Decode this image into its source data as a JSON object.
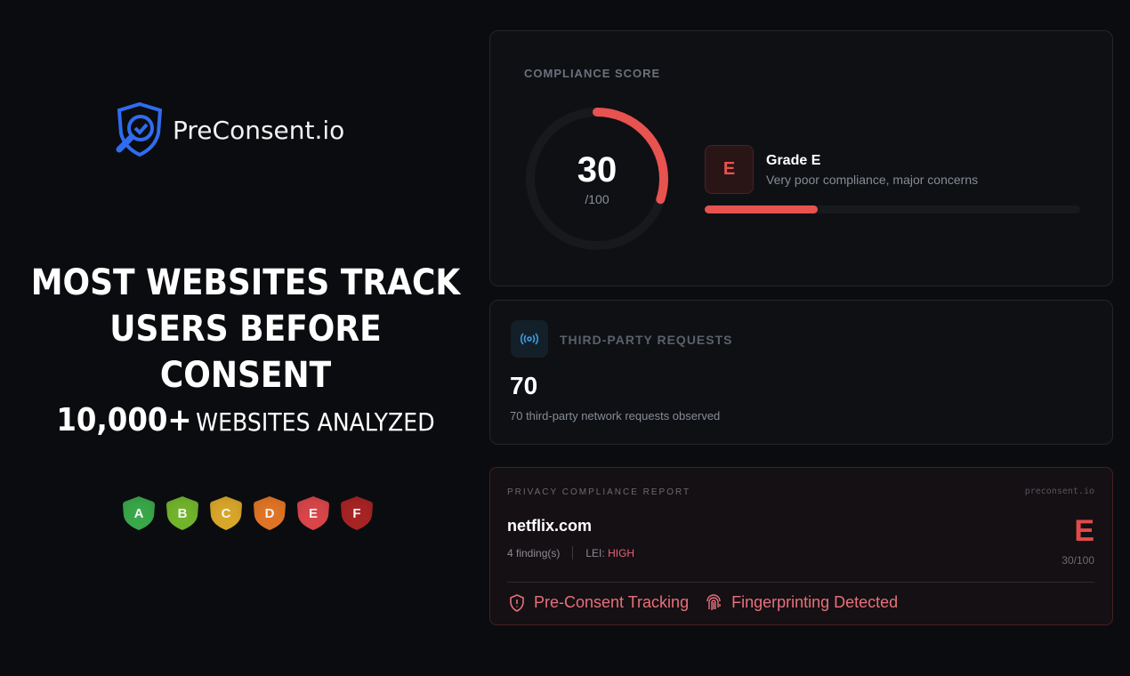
{
  "brand": {
    "name": "PreConsent.io",
    "icon": "shield-magnifier-check-icon",
    "color": "#2f6cf0"
  },
  "hero": {
    "headline_1": "MOST WEBSITES TRACK",
    "headline_2": "USERS BEFORE CONSENT",
    "stat_number": "10,000+",
    "stat_text": "WEBSITES ANALYZED"
  },
  "grades": [
    {
      "letter": "A",
      "color": "#3aa84a"
    },
    {
      "letter": "B",
      "color": "#72b52c"
    },
    {
      "letter": "C",
      "color": "#d9a72a"
    },
    {
      "letter": "D",
      "color": "#e07526"
    },
    {
      "letter": "E",
      "color": "#d9464a"
    },
    {
      "letter": "F",
      "color": "#a82424"
    }
  ],
  "score": {
    "label": "COMPLIANCE SCORE",
    "value": "30",
    "max": "/100",
    "percent": 30,
    "grade": "E",
    "grade_title": "Grade E",
    "grade_desc": "Very poor compliance, major concerns",
    "accent": "#e8524f"
  },
  "requests": {
    "icon": "broadcast-icon",
    "label": "THIRD-PARTY REQUESTS",
    "value": "70",
    "desc": "70 third-party network requests observed"
  },
  "report": {
    "label": "PRIVACY COMPLIANCE REPORT",
    "site_brand": "preconsent.io",
    "domain": "netflix.com",
    "findings": "4 finding(s)",
    "lei_label": "LEI:",
    "lei_value": "HIGH",
    "grade": "E",
    "score": "30/100",
    "tags": [
      {
        "icon": "shield-alert-icon",
        "text": "Pre-Consent Tracking"
      },
      {
        "icon": "fingerprint-icon",
        "text": "Fingerprinting Detected"
      }
    ]
  }
}
